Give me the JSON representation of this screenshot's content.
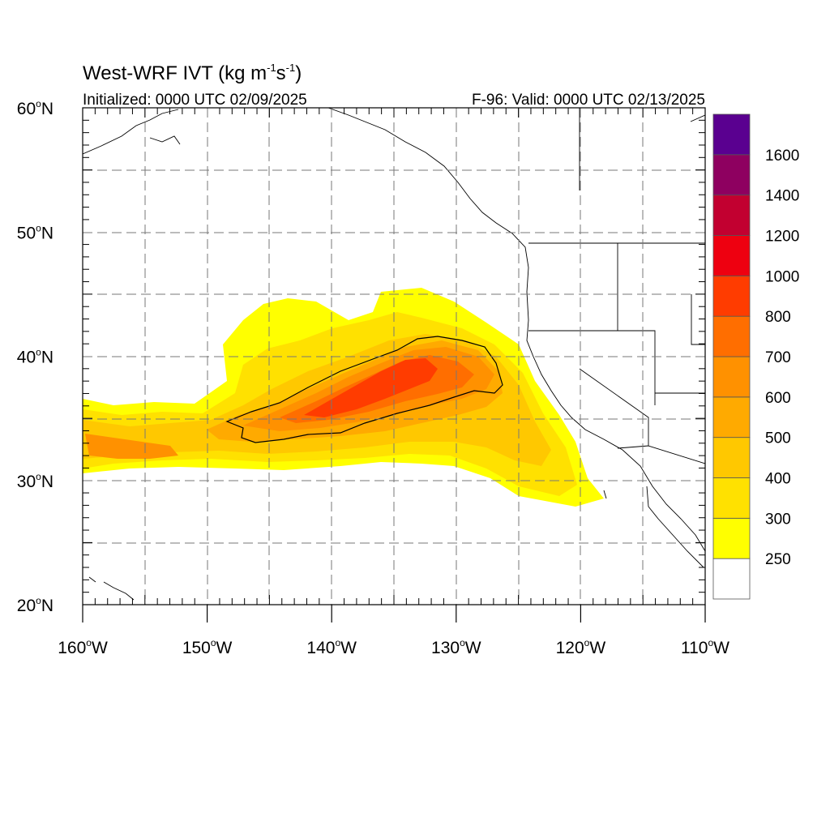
{
  "title": {
    "main": "West-WRF IVT (kg m",
    "exp1": "-1",
    "mid": "s",
    "exp2": "-1",
    "close": ")"
  },
  "initialized": "Initialized: 0000 UTC 02/09/2025",
  "valid": "F-96: Valid: 0000 UTC 02/13/2025",
  "lat_ticks": [
    "60",
    "50",
    "40",
    "30",
    "20"
  ],
  "lon_ticks": [
    "160",
    "150",
    "140",
    "130",
    "120",
    "110"
  ],
  "lat_suffix": "N",
  "lon_suffix": "W",
  "degree_sign": "o",
  "colorbar": {
    "labels": [
      "250",
      "300",
      "400",
      "500",
      "600",
      "700",
      "800",
      "1000",
      "1200",
      "1400",
      "1600"
    ],
    "colors": [
      "#ffffff",
      "#ffff00",
      "#ffe100",
      "#ffc800",
      "#ffaa00",
      "#ff9100",
      "#ff6e00",
      "#ff3c00",
      "#ee0010",
      "#c20030",
      "#8e0060",
      "#5a0090"
    ]
  }
}
